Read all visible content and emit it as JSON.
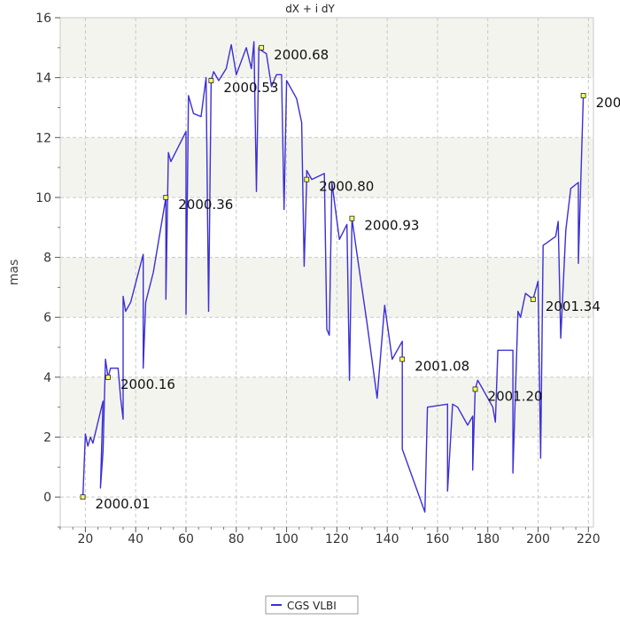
{
  "chart_data": {
    "type": "line",
    "title": "dX + i dY",
    "xlabel": "",
    "ylabel": "mas",
    "xlim": [
      10,
      222
    ],
    "ylim": [
      -1,
      16
    ],
    "xticks": [
      20,
      40,
      60,
      80,
      100,
      120,
      140,
      160,
      180,
      200,
      220
    ],
    "yticks": [
      0,
      2,
      4,
      6,
      8,
      10,
      12,
      14,
      16
    ],
    "grid": true,
    "legend_position": "bottom-center",
    "colors": {
      "series": "#3b2fd6",
      "background_band": "#f4f4ef",
      "grid": "#c8c8c8",
      "marker_fill": "#ffff66"
    },
    "series": [
      {
        "name": "CGS VLBI",
        "points": [
          [
            19,
            0
          ],
          [
            20,
            2.1
          ],
          [
            21,
            1.7
          ],
          [
            22,
            2.0
          ],
          [
            23,
            1.8
          ],
          [
            25,
            2.5
          ],
          [
            27,
            3.2
          ],
          [
            26,
            0.3
          ],
          [
            27,
            1.5
          ],
          [
            28,
            4.6
          ],
          [
            29,
            4.0
          ],
          [
            30,
            4.3
          ],
          [
            33,
            4.3
          ],
          [
            34,
            3.3
          ],
          [
            35,
            2.6
          ],
          [
            35,
            6.7
          ],
          [
            36,
            6.2
          ],
          [
            38,
            6.5
          ],
          [
            43,
            8.1
          ],
          [
            43,
            4.3
          ],
          [
            44,
            6.5
          ],
          [
            47,
            7.5
          ],
          [
            52,
            10.0
          ],
          [
            52,
            6.6
          ],
          [
            53,
            11.5
          ],
          [
            54,
            11.2
          ],
          [
            57,
            11.7
          ],
          [
            60,
            12.2
          ],
          [
            60,
            6.1
          ],
          [
            61,
            13.4
          ],
          [
            63,
            12.8
          ],
          [
            66,
            12.7
          ],
          [
            68,
            14.0
          ],
          [
            69,
            6.2
          ],
          [
            70,
            13.9
          ],
          [
            71,
            14.2
          ],
          [
            73,
            13.9
          ],
          [
            76,
            14.3
          ],
          [
            78,
            15.1
          ],
          [
            80,
            14.1
          ],
          [
            84,
            15.0
          ],
          [
            86,
            14.3
          ],
          [
            87,
            15.2
          ],
          [
            88,
            10.2
          ],
          [
            89,
            15.0
          ],
          [
            90,
            14.9
          ],
          [
            92,
            14.8
          ],
          [
            94,
            13.7
          ],
          [
            96,
            14.1
          ],
          [
            98,
            14.1
          ],
          [
            99,
            9.6
          ],
          [
            100,
            13.9
          ],
          [
            104,
            13.3
          ],
          [
            106,
            12.5
          ],
          [
            107,
            7.7
          ],
          [
            108,
            10.6
          ],
          [
            108,
            10.9
          ],
          [
            110,
            10.6
          ],
          [
            115,
            10.8
          ],
          [
            116,
            5.6
          ],
          [
            117,
            5.4
          ],
          [
            118,
            10.5
          ],
          [
            121,
            8.6
          ],
          [
            124,
            9.1
          ],
          [
            125,
            3.9
          ],
          [
            126,
            9.3
          ],
          [
            128,
            8.1
          ],
          [
            132,
            5.8
          ],
          [
            136,
            3.3
          ],
          [
            139,
            6.4
          ],
          [
            142,
            4.6
          ],
          [
            146,
            5.2
          ],
          [
            146,
            1.6
          ],
          [
            155,
            -0.5
          ],
          [
            156,
            3.0
          ],
          [
            164,
            3.1
          ],
          [
            164,
            0.2
          ],
          [
            166,
            3.1
          ],
          [
            168,
            3.0
          ],
          [
            172,
            2.4
          ],
          [
            174,
            2.7
          ],
          [
            174,
            0.9
          ],
          [
            175,
            3.6
          ],
          [
            176,
            3.9
          ],
          [
            178,
            3.6
          ],
          [
            182,
            3.0
          ],
          [
            183,
            2.5
          ],
          [
            184,
            4.9
          ],
          [
            190,
            4.9
          ],
          [
            190,
            0.8
          ],
          [
            192,
            6.2
          ],
          [
            193,
            6.0
          ],
          [
            195,
            6.8
          ],
          [
            198,
            6.6
          ],
          [
            200,
            7.2
          ],
          [
            201,
            1.3
          ],
          [
            202,
            8.4
          ],
          [
            207,
            8.7
          ],
          [
            208,
            9.2
          ],
          [
            209,
            5.3
          ],
          [
            211,
            8.9
          ],
          [
            213,
            10.3
          ],
          [
            216,
            10.5
          ],
          [
            216,
            7.8
          ],
          [
            218,
            13.4
          ]
        ]
      }
    ],
    "annotations": [
      {
        "x": 19,
        "y": 0,
        "label": "2000.01"
      },
      {
        "x": 29,
        "y": 4.0,
        "label": "2000.16"
      },
      {
        "x": 52,
        "y": 10.0,
        "label": "2000.36"
      },
      {
        "x": 70,
        "y": 13.9,
        "label": "2000.53"
      },
      {
        "x": 90,
        "y": 15.0,
        "label": "2000.68"
      },
      {
        "x": 108,
        "y": 10.6,
        "label": "2000.80"
      },
      {
        "x": 126,
        "y": 9.3,
        "label": "2000.93"
      },
      {
        "x": 146,
        "y": 4.6,
        "label": "2001.08"
      },
      {
        "x": 175,
        "y": 3.6,
        "label": "2001.20"
      },
      {
        "x": 198,
        "y": 6.6,
        "label": "2001.34"
      },
      {
        "x": 218,
        "y": 13.4,
        "label": "200"
      }
    ]
  }
}
